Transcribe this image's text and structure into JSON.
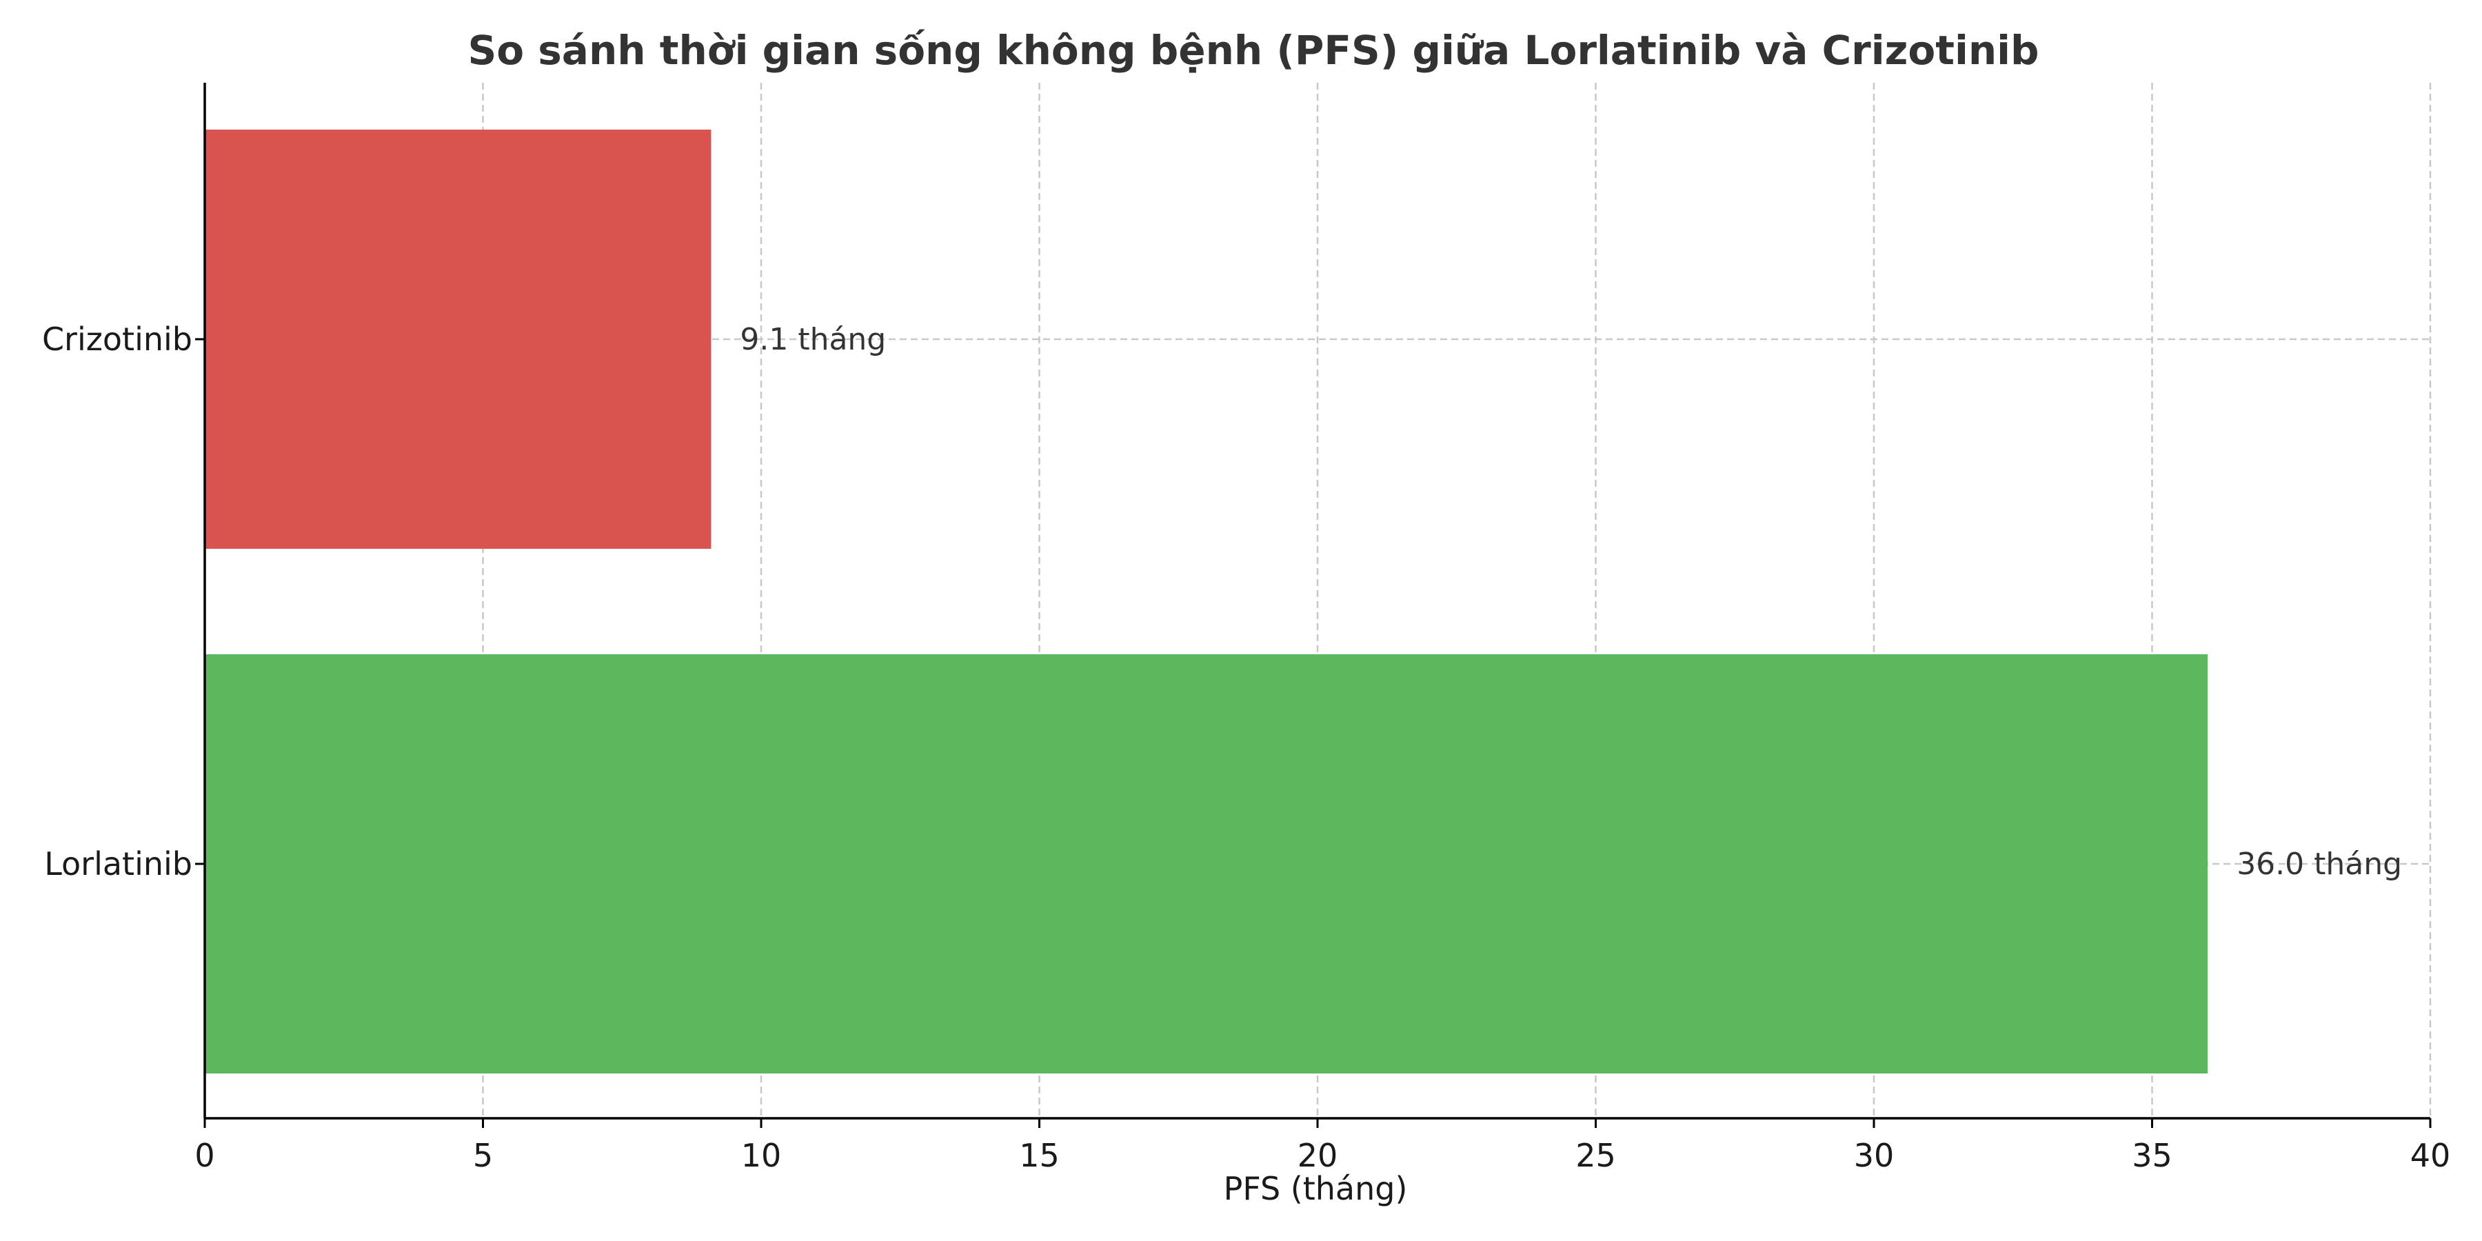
{
  "chart_data": {
    "type": "bar",
    "orientation": "horizontal",
    "title": "So sánh thời gian sống không bệnh (PFS) giữa Lorlatinib và Crizotinib",
    "xlabel": "PFS (tháng)",
    "ylabel": "",
    "xlim": [
      0,
      40
    ],
    "xticks": [
      "0",
      "5",
      "10",
      "15",
      "20",
      "25",
      "30",
      "35",
      "40"
    ],
    "categories": [
      "Lorlatinib",
      "Crizotinib"
    ],
    "values": [
      36.0,
      9.1
    ],
    "data_labels": [
      "36.0 tháng",
      "9.1 tháng"
    ],
    "colors": [
      "#5cb85c",
      "#d9534f"
    ],
    "grid": true,
    "legend": "none"
  }
}
